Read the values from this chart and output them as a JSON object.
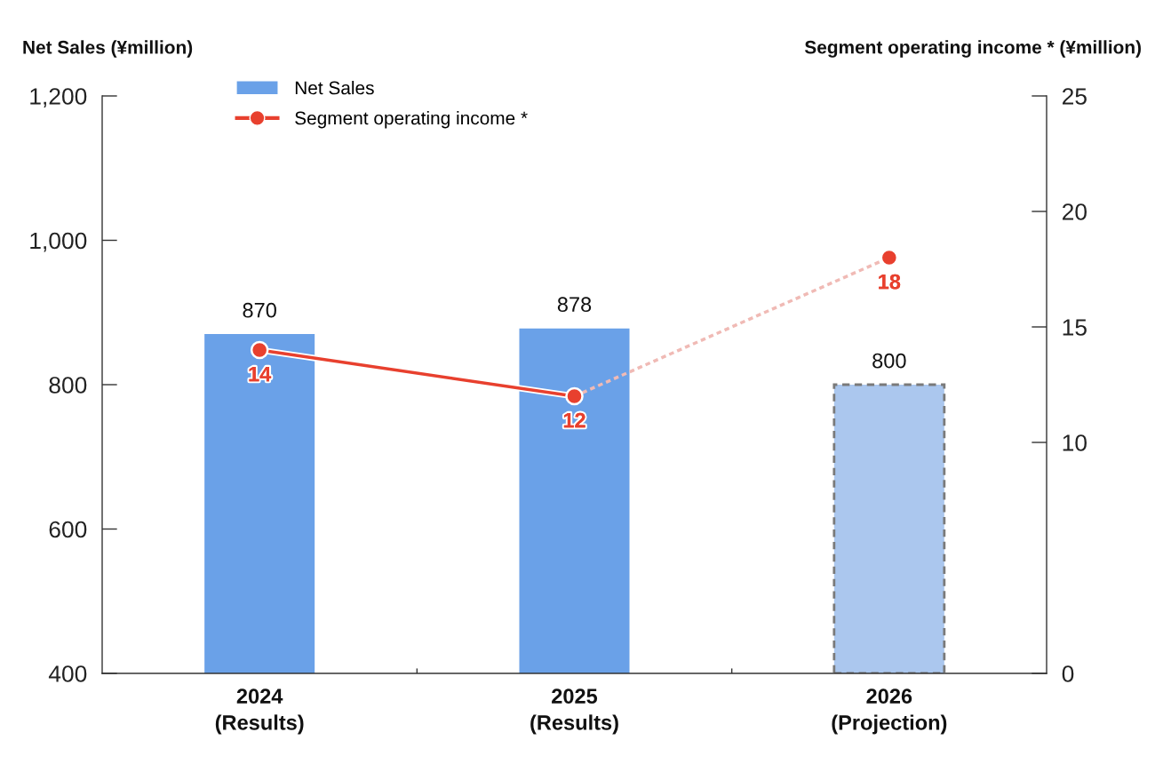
{
  "chart_data": {
    "type": "bar",
    "categories": [
      "2024\n(Results)",
      "2025\n(Results)",
      "2026\n(Projection)"
    ],
    "ylabel": "Net Sales (¥million)",
    "y2label": "Segment operating income * (¥million)",
    "ylim": [
      400,
      1200
    ],
    "yticks": [
      400,
      600,
      800,
      {
        "value": 1000,
        "label": "1,000"
      },
      {
        "value": 1200,
        "label": "1,200"
      }
    ],
    "y2lim": [
      0,
      25
    ],
    "y2ticks": [
      0,
      10,
      15,
      20,
      25
    ],
    "legend": "top left",
    "series": [
      {
        "name": "Net Sales",
        "color": "#6aa1e8",
        "values": [
          870,
          878,
          null
        ],
        "value_labels": [
          "870",
          "878",
          null
        ]
      },
      {
        "color": "#abc7ee",
        "line_style": "dashed",
        "values": [
          null,
          null,
          800
        ],
        "value_labels": [
          null,
          null,
          "800"
        ]
      },
      {
        "name": "Segment operating income *",
        "type": "line",
        "axis": "y2",
        "color": "#e8402e",
        "marker": "circle",
        "line_style": "solid",
        "values": [
          14,
          12,
          null
        ],
        "value_labels": [
          "14",
          "12",
          null
        ]
      },
      {
        "type": "line",
        "axis": "y2",
        "color": "#f0bab5",
        "line_style": "dotted",
        "marker": "circle",
        "colors": [
          null,
          null,
          "#e8402e"
        ],
        "values": [
          null,
          12,
          18
        ],
        "value_labels": [
          null,
          null,
          "18"
        ]
      }
    ]
  }
}
